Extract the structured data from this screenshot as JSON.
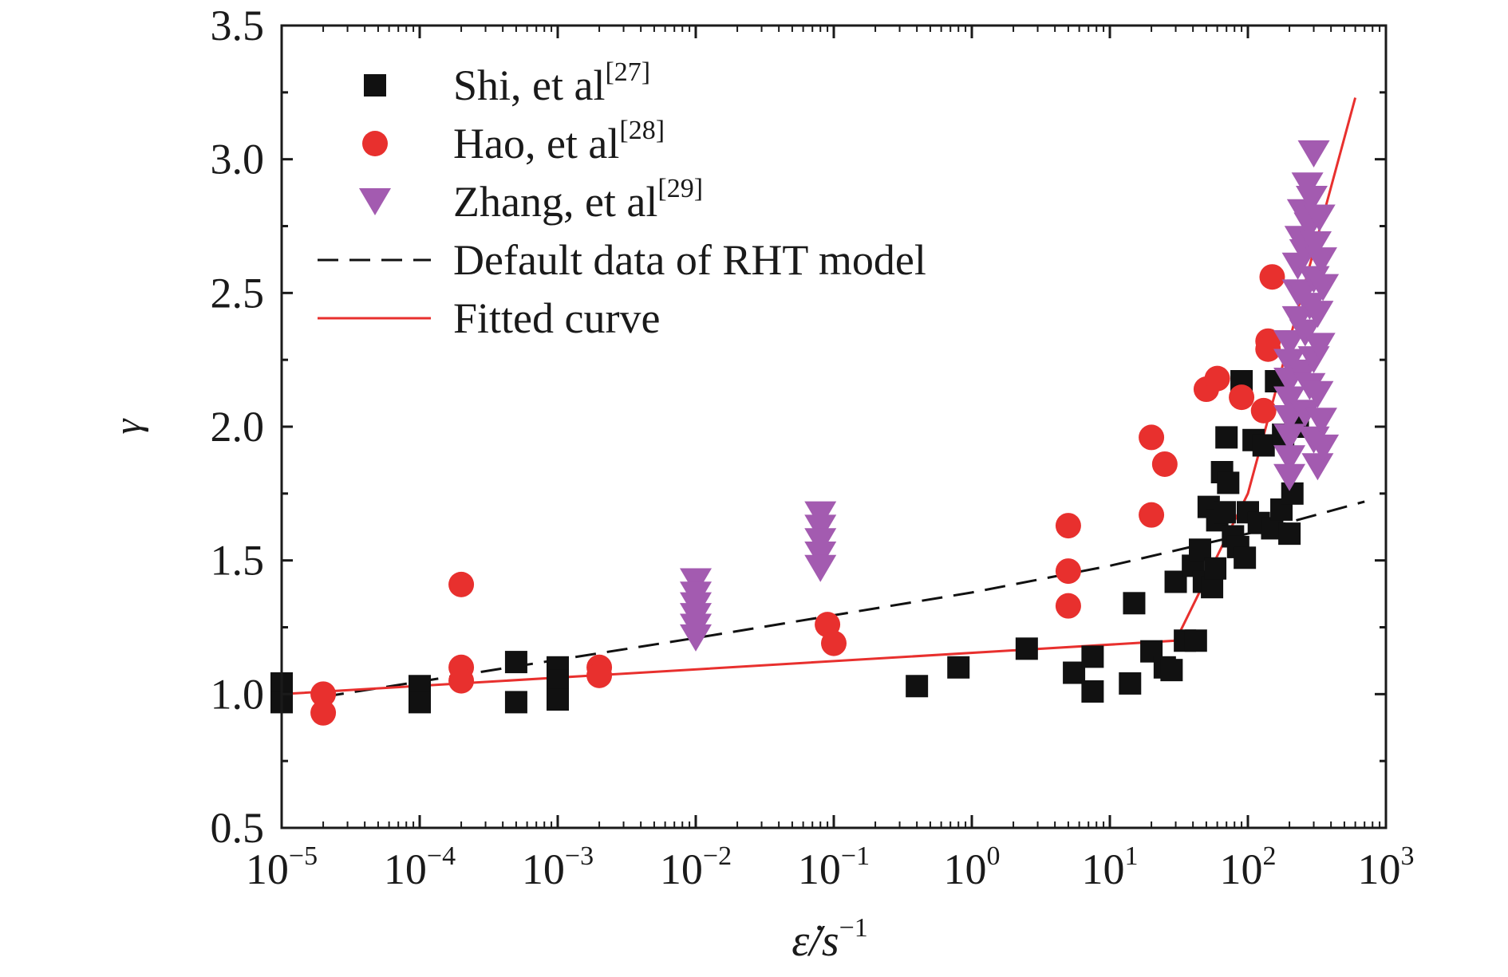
{
  "chart_data": {
    "type": "scatter",
    "xlabel": "ε̇/s",
    "xlabel_exponent": "−1",
    "ylabel": "γ",
    "xscale": "log",
    "xlim": [
      1e-05,
      1000
    ],
    "ylim": [
      0.5,
      3.5
    ],
    "x_ticks": [
      {
        "value": 1e-05,
        "base": "10",
        "exp": "−5"
      },
      {
        "value": 0.0001,
        "base": "10",
        "exp": "−4"
      },
      {
        "value": 0.001,
        "base": "10",
        "exp": "−3"
      },
      {
        "value": 0.01,
        "base": "10",
        "exp": "−2"
      },
      {
        "value": 0.1,
        "base": "10",
        "exp": "−1"
      },
      {
        "value": 1,
        "base": "10",
        "exp": "0"
      },
      {
        "value": 10,
        "base": "10",
        "exp": "1"
      },
      {
        "value": 100,
        "base": "10",
        "exp": "2"
      },
      {
        "value": 1000,
        "base": "10",
        "exp": "3"
      }
    ],
    "y_ticks": [
      {
        "value": 0.5,
        "label": "0.5"
      },
      {
        "value": 1.0,
        "label": "1.0"
      },
      {
        "value": 1.5,
        "label": "1.5"
      },
      {
        "value": 2.0,
        "label": "2.0"
      },
      {
        "value": 2.5,
        "label": "2.5"
      },
      {
        "value": 3.0,
        "label": "3.0"
      },
      {
        "value": 3.5,
        "label": "3.5"
      }
    ],
    "grid": false,
    "legend_position": "top-left",
    "series": [
      {
        "name": "Shi, et al",
        "ref": "[27]",
        "marker": "square",
        "color": "#111111",
        "points": [
          [
            1e-05,
            1.04
          ],
          [
            1e-05,
            0.97
          ],
          [
            0.0001,
            1.03
          ],
          [
            0.0001,
            0.97
          ],
          [
            0.0005,
            1.12
          ],
          [
            0.0005,
            0.97
          ],
          [
            0.001,
            1.1
          ],
          [
            0.001,
            1.05
          ],
          [
            0.001,
            0.98
          ],
          [
            0.4,
            1.03
          ],
          [
            0.8,
            1.1
          ],
          [
            2.5,
            1.17
          ],
          [
            5.5,
            1.08
          ],
          [
            7.5,
            1.14
          ],
          [
            7.5,
            1.01
          ],
          [
            14,
            1.04
          ],
          [
            15,
            1.34
          ],
          [
            20,
            1.16
          ],
          [
            25,
            1.1
          ],
          [
            28,
            1.09
          ],
          [
            30,
            1.42
          ],
          [
            35,
            1.2
          ],
          [
            40,
            1.48
          ],
          [
            42,
            1.2
          ],
          [
            45,
            1.54
          ],
          [
            48,
            1.42
          ],
          [
            52,
            1.7
          ],
          [
            55,
            1.4
          ],
          [
            58,
            1.47
          ],
          [
            60,
            1.65
          ],
          [
            65,
            1.83
          ],
          [
            68,
            1.68
          ],
          [
            70,
            1.96
          ],
          [
            72,
            1.79
          ],
          [
            78,
            1.59
          ],
          [
            85,
            1.55
          ],
          [
            90,
            2.17
          ],
          [
            95,
            1.51
          ],
          [
            100,
            1.68
          ],
          [
            110,
            1.95
          ],
          [
            120,
            1.64
          ],
          [
            130,
            1.93
          ],
          [
            150,
            1.62
          ],
          [
            160,
            2.17
          ],
          [
            175,
            1.69
          ],
          [
            180,
            1.97
          ],
          [
            200,
            1.6
          ],
          [
            210,
            1.75
          ],
          [
            230,
            2.0
          ]
        ]
      },
      {
        "name": "Hao, et al",
        "ref": "[28]",
        "marker": "circle",
        "color": "#e8302e",
        "points": [
          [
            2e-05,
            1.0
          ],
          [
            2e-05,
            0.93
          ],
          [
            0.0002,
            1.41
          ],
          [
            0.0002,
            1.1
          ],
          [
            0.0002,
            1.05
          ],
          [
            0.002,
            1.1
          ],
          [
            0.002,
            1.07
          ],
          [
            0.09,
            1.26
          ],
          [
            0.1,
            1.19
          ],
          [
            5,
            1.63
          ],
          [
            5,
            1.46
          ],
          [
            5,
            1.33
          ],
          [
            20,
            1.96
          ],
          [
            20,
            1.67
          ],
          [
            25,
            1.86
          ],
          [
            50,
            2.14
          ],
          [
            60,
            2.18
          ],
          [
            90,
            2.11
          ],
          [
            130,
            2.06
          ],
          [
            140,
            2.32
          ],
          [
            140,
            2.29
          ],
          [
            150,
            2.56
          ]
        ]
      },
      {
        "name": "Zhang, et al",
        "ref": "[29]",
        "marker": "triangle-down",
        "color": "#a35bb0",
        "points": [
          [
            0.01,
            1.42
          ],
          [
            0.01,
            1.37
          ],
          [
            0.01,
            1.33
          ],
          [
            0.01,
            1.29
          ],
          [
            0.01,
            1.25
          ],
          [
            0.01,
            1.21
          ],
          [
            0.08,
            1.67
          ],
          [
            0.08,
            1.62
          ],
          [
            0.08,
            1.57
          ],
          [
            0.08,
            1.52
          ],
          [
            0.08,
            1.47
          ],
          [
            200,
            2.31
          ],
          [
            200,
            2.24
          ],
          [
            200,
            2.17
          ],
          [
            200,
            2.1
          ],
          [
            200,
            2.03
          ],
          [
            200,
            1.96
          ],
          [
            200,
            1.88
          ],
          [
            200,
            1.81
          ],
          [
            230,
            2.6
          ],
          [
            230,
            2.5
          ],
          [
            230,
            2.4
          ],
          [
            240,
            2.7
          ],
          [
            250,
            2.8
          ],
          [
            250,
            2.5
          ],
          [
            250,
            2.2
          ],
          [
            260,
            2.65
          ],
          [
            260,
            2.35
          ],
          [
            260,
            2.05
          ],
          [
            270,
            2.9
          ],
          [
            280,
            2.75
          ],
          [
            280,
            2.45
          ],
          [
            280,
            2.15
          ],
          [
            290,
            2.85
          ],
          [
            300,
            3.02
          ],
          [
            300,
            2.55
          ],
          [
            300,
            2.25
          ],
          [
            300,
            1.95
          ],
          [
            310,
            2.68
          ],
          [
            320,
            2.42
          ],
          [
            320,
            2.12
          ],
          [
            320,
            1.85
          ],
          [
            330,
            2.78
          ],
          [
            330,
            2.3
          ],
          [
            340,
            2.62
          ],
          [
            340,
            2.02
          ],
          [
            350,
            2.52
          ],
          [
            350,
            1.92
          ]
        ]
      },
      {
        "name": "Default data of RHT model",
        "marker": "none",
        "line": "dashed",
        "color": "#111111",
        "points": [
          [
            2e-05,
            0.99
          ],
          [
            0.01,
            1.21
          ],
          [
            1,
            1.38
          ],
          [
            10,
            1.48
          ],
          [
            100,
            1.6
          ],
          [
            700,
            1.72
          ]
        ]
      },
      {
        "name": "Fitted curve",
        "marker": "none",
        "line": "solid",
        "color": "#e8302e",
        "points": [
          [
            1e-05,
            1.0
          ],
          [
            30,
            1.2
          ],
          [
            100,
            1.75
          ],
          [
            600,
            3.23
          ]
        ]
      }
    ]
  }
}
